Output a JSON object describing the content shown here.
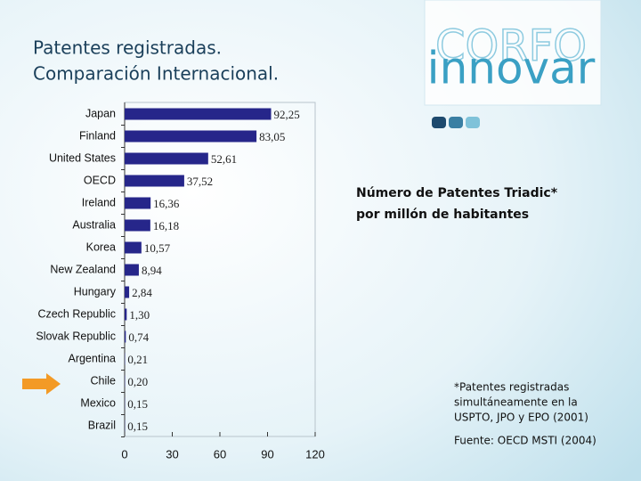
{
  "chart_data": {
    "type": "bar",
    "orientation": "horizontal",
    "title": [
      "Patentes registradas.",
      "Comparación Internacional."
    ],
    "annotation": [
      "Número de Patentes Triadic*",
      "por millón de habitantes"
    ],
    "footnote": [
      "*Patentes registradas",
      "simultáneamente en la",
      "USPTO, JPO y EPO (2001)"
    ],
    "source": "Fuente: OECD MSTI (2004)",
    "categories": [
      "Japan",
      "Finland",
      "United States",
      "OECD",
      "Ireland",
      "Australia",
      "Korea",
      "New Zealand",
      "Hungary",
      "Czech Republic",
      "Slovak Republic",
      "Argentina",
      "Chile",
      "Mexico",
      "Brazil"
    ],
    "values": [
      92.25,
      83.05,
      52.61,
      37.52,
      16.36,
      16.18,
      10.57,
      8.94,
      2.84,
      1.3,
      0.74,
      0.21,
      0.2,
      0.15,
      0.15
    ],
    "value_labels": [
      "92,25",
      "83,05",
      "52,61",
      "37,52",
      "16,36",
      "16,18",
      "10,57",
      "8,94",
      "2,84",
      "1,30",
      "0,74",
      "0,21",
      "0,20",
      "0,15",
      "0,15"
    ],
    "color": "#26268a",
    "xlim": [
      0,
      120
    ],
    "xticks": [
      0,
      30,
      60,
      90,
      120
    ]
  },
  "logo": [
    "CORFO",
    "innovar"
  ]
}
